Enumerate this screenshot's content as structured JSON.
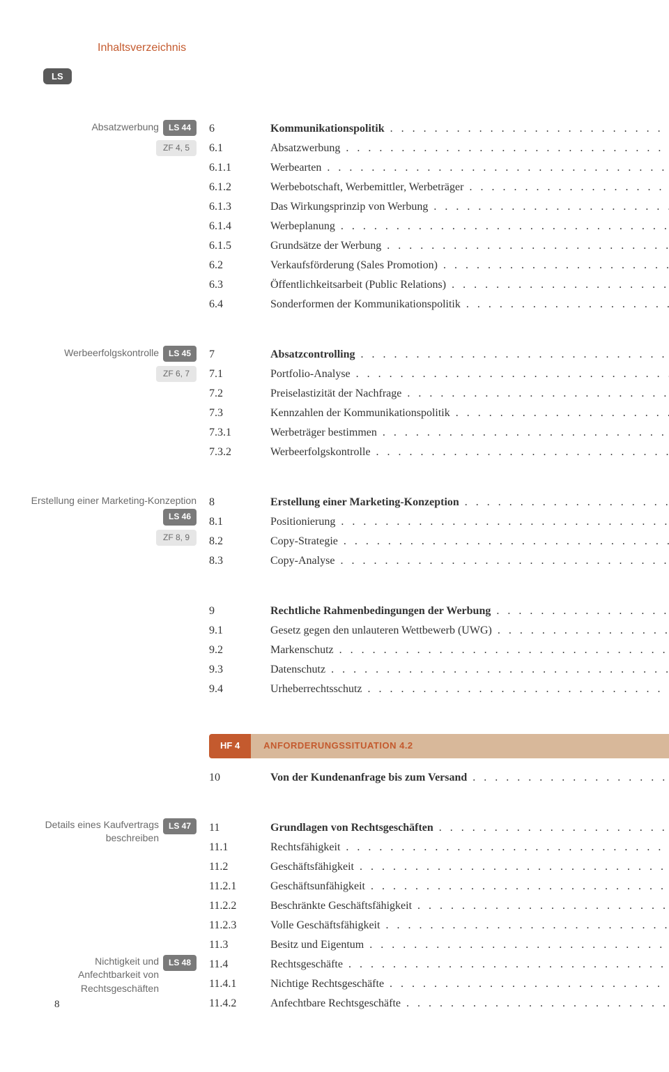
{
  "header": {
    "title": "Inhaltsverzeichnis"
  },
  "ls_tab": "LS",
  "page_number": "8",
  "colors": {
    "accent": "#c45a2e",
    "badge_dark": "#7a7a7a",
    "badge_light": "#e6e6e6",
    "situation_bg": "#d8b89a"
  },
  "sections": [
    {
      "sidebar": {
        "label": "Absatzwerbung",
        "ls": "LS 44",
        "zf": "ZF 4, 5"
      },
      "rows": [
        {
          "num": "6",
          "title": "Kommunikationspolitik",
          "bold": true
        },
        {
          "num": "6.1",
          "title": "Absatzwerbung"
        },
        {
          "num": "6.1.1",
          "title": "Werbearten"
        },
        {
          "num": "6.1.2",
          "title": "Werbebotschaft, Werbemittler, Werbeträger"
        },
        {
          "num": "6.1.3",
          "title": "Das Wirkungsprinzip von Werbung"
        },
        {
          "num": "6.1.4",
          "title": "Werbeplanung"
        },
        {
          "num": "6.1.5",
          "title": "Grundsätze der Werbung"
        },
        {
          "num": "6.2",
          "title": "Verkaufsförderung (Sales Promotion)"
        },
        {
          "num": "6.3",
          "title": "Öffentlichkeitsarbeit (Public Relations)"
        },
        {
          "num": "6.4",
          "title": "Sonderformen der Kommunikationspolitik"
        }
      ]
    },
    {
      "sidebar": {
        "label": "Werbeerfolgskontrolle",
        "ls": "LS 45",
        "zf": "ZF 6, 7"
      },
      "rows": [
        {
          "num": "7",
          "title": "Absatzcontrolling",
          "bold": true
        },
        {
          "num": "7.1",
          "title": "Portfolio-Analyse"
        },
        {
          "num": "7.2",
          "title": "Preiselastizität der Nachfrage"
        },
        {
          "num": "7.3",
          "title": "Kennzahlen der Kommunikationspolitik"
        },
        {
          "num": "7.3.1",
          "title": "Werbeträger bestimmen"
        },
        {
          "num": "7.3.2",
          "title": "Werbeerfolgskontrolle"
        }
      ]
    },
    {
      "sidebar": {
        "label": "Erstellung einer Marketing-Konzeption",
        "ls": "LS 46",
        "zf": "ZF 8, 9"
      },
      "rows": [
        {
          "num": "8",
          "title": "Erstellung einer Marketing-Konzeption",
          "bold": true
        },
        {
          "num": "8.1",
          "title": "Positionierung"
        },
        {
          "num": "8.2",
          "title": "Copy-Strategie"
        },
        {
          "num": "8.3",
          "title": "Copy-Analyse"
        }
      ]
    },
    {
      "sidebar": null,
      "rows": [
        {
          "num": "9",
          "title": "Rechtliche Rahmenbedingungen der Werbung",
          "bold": true
        },
        {
          "num": "9.1",
          "title": "Gesetz gegen den unlauteren Wettbewerb (UWG)"
        },
        {
          "num": "9.2",
          "title": "Markenschutz"
        },
        {
          "num": "9.3",
          "title": "Datenschutz"
        },
        {
          "num": "9.4",
          "title": "Urheberrechtsschutz"
        }
      ]
    },
    {
      "sidebar": null,
      "situation": {
        "hf": "HF 4",
        "title": "ANFORDERUNGSSITUATION 4.2"
      },
      "rows": [
        {
          "num": "10",
          "title": "Von der Kundenanfrage bis zum Versand",
          "bold": true
        }
      ]
    },
    {
      "sidebar_multi": [
        {
          "label": "Details eines Kaufvertrags beschreiben",
          "ls": "LS 47",
          "at_row": 0
        },
        {
          "label": "Nichtigkeit und Anfechtbarkeit von Rechtsgeschäften",
          "ls": "LS 48",
          "at_row": 7
        }
      ],
      "rows": [
        {
          "num": "11",
          "title": "Grundlagen von Rechtsgeschäften",
          "bold": true
        },
        {
          "num": "11.1",
          "title": "Rechtsfähigkeit"
        },
        {
          "num": "11.2",
          "title": "Geschäftsfähigkeit"
        },
        {
          "num": "11.2.1",
          "title": "Geschäftsunfähigkeit"
        },
        {
          "num": "11.2.2",
          "title": "Beschränkte Geschäftsfähigkeit"
        },
        {
          "num": "11.2.3",
          "title": "Volle Geschäftsfähigkeit"
        },
        {
          "num": "11.3",
          "title": "Besitz und Eigentum"
        },
        {
          "num": "11.4",
          "title": "Rechtsgeschäfte"
        },
        {
          "num": "11.4.1",
          "title": "Nichtige Rechtsgeschäfte"
        },
        {
          "num": "11.4.2",
          "title": "Anfechtbare Rechtsgeschäfte"
        }
      ]
    }
  ]
}
